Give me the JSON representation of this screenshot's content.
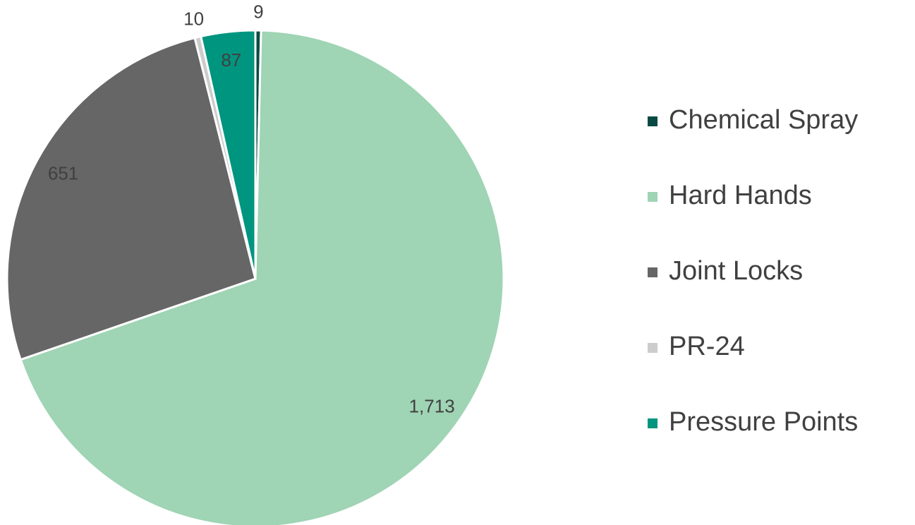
{
  "chart_data": {
    "type": "pie",
    "categories": [
      "Chemical Spray",
      "Hard Hands",
      "Joint Locks",
      "PR-24",
      "Pressure Points"
    ],
    "values": [
      9,
      1713,
      651,
      10,
      87
    ],
    "value_labels": [
      "9",
      "1,713",
      "651",
      "10",
      "87"
    ],
    "colors": [
      "#0b4a44",
      "#9fd4b4",
      "#666666",
      "#cccccc",
      "#00957f"
    ],
    "legend": "right"
  }
}
